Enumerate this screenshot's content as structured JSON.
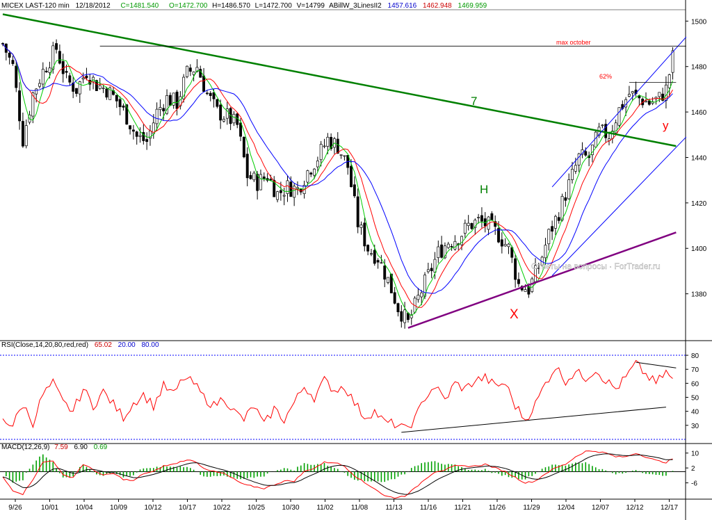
{
  "header": {
    "price": {
      "symbol": "MICEX LAST-120 min",
      "date": "12/18/2012",
      "close": "C=1481.540",
      "open": "O=1472.700",
      "high": "H=1486.570",
      "low": "L=1472.700",
      "volume": "V=14799",
      "indicator": "ABillW_3LinesII2",
      "v1": "1457.616",
      "v2": "1462.948",
      "v3": "1469.959"
    },
    "rsi": {
      "label": "RSI(Close,14,20,80,red,red)",
      "value": "65.02",
      "low": "20.00",
      "high": "80.00"
    },
    "macd": {
      "label": "MACD(12,26,9)",
      "v1": "7.59",
      "v2": "6.90",
      "v3": "0.69"
    }
  },
  "colors": {
    "background": "#ffffff",
    "blue": "#0000ff",
    "red": "#ff0000",
    "green": "#00cc00",
    "trendline": "#008000",
    "purple": "#800080",
    "hist": "#00a000",
    "header_blue": "#0000cc"
  },
  "annotations": {
    "h": "H",
    "x": "X",
    "y": "y",
    "seven": "7",
    "max_october": "max october",
    "fib": "62%",
    "watermark": "Ответы на вопросы · ForTrader.ru"
  },
  "chart_data": [
    {
      "type": "candlestick",
      "name": "MICEX LAST-120 min",
      "x_tick_labels": [
        "9/26",
        "10/01",
        "10/04",
        "10/09",
        "10/12",
        "10/17",
        "10/22",
        "10/25",
        "10/30",
        "11/02",
        "11/08",
        "11/13",
        "11/16",
        "11/21",
        "11/26",
        "11/29",
        "12/04",
        "12/07",
        "12/12",
        "12/17"
      ],
      "y_ticks": [
        1380,
        1400,
        1420,
        1440,
        1460,
        1480,
        1500
      ],
      "ylim": [
        1360,
        1505
      ],
      "anchors": [
        [
          0,
          1490
        ],
        [
          3,
          1480
        ],
        [
          6,
          1448
        ],
        [
          9,
          1468
        ],
        [
          12,
          1478
        ],
        [
          16,
          1488
        ],
        [
          19,
          1474
        ],
        [
          22,
          1470
        ],
        [
          25,
          1478
        ],
        [
          28,
          1472
        ],
        [
          31,
          1470
        ],
        [
          34,
          1465
        ],
        [
          37,
          1458
        ],
        [
          40,
          1449
        ],
        [
          43,
          1447
        ],
        [
          46,
          1460
        ],
        [
          49,
          1466
        ],
        [
          52,
          1464
        ],
        [
          55,
          1477
        ],
        [
          58,
          1480
        ],
        [
          61,
          1468
        ],
        [
          64,
          1460
        ],
        [
          67,
          1458
        ],
        [
          70,
          1454
        ],
        [
          73,
          1432
        ],
        [
          76,
          1429
        ],
        [
          79,
          1432
        ],
        [
          82,
          1424
        ],
        [
          85,
          1427
        ],
        [
          88,
          1426
        ],
        [
          91,
          1434
        ],
        [
          94,
          1440
        ],
        [
          97,
          1448
        ],
        [
          100,
          1445
        ],
        [
          103,
          1436
        ],
        [
          106,
          1411
        ],
        [
          109,
          1400
        ],
        [
          112,
          1396
        ],
        [
          115,
          1386
        ],
        [
          118,
          1374
        ],
        [
          121,
          1367
        ],
        [
          124,
          1378
        ],
        [
          127,
          1388
        ],
        [
          130,
          1398
        ],
        [
          133,
          1403
        ],
        [
          136,
          1405
        ],
        [
          139,
          1410
        ],
        [
          142,
          1412
        ],
        [
          145,
          1410
        ],
        [
          148,
          1406
        ],
        [
          151,
          1400
        ],
        [
          154,
          1384
        ],
        [
          157,
          1382
        ],
        [
          160,
          1392
        ],
        [
          163,
          1406
        ],
        [
          166,
          1416
        ],
        [
          169,
          1428
        ],
        [
          172,
          1440
        ],
        [
          175,
          1440
        ],
        [
          178,
          1451
        ],
        [
          181,
          1450
        ],
        [
          184,
          1461
        ],
        [
          187,
          1468
        ],
        [
          190,
          1466
        ],
        [
          193,
          1464
        ],
        [
          196,
          1466
        ],
        [
          198,
          1470
        ],
        [
          200,
          1484
        ]
      ],
      "moving_averages": [
        {
          "color": "green",
          "period": 5
        },
        {
          "color": "red",
          "period": 9
        },
        {
          "color": "blue",
          "period": 16
        }
      ],
      "trendlines": [
        {
          "name": "downtrend-7",
          "color": "green",
          "points": [
            [
              0,
              1503
            ],
            [
              201,
              1445
            ]
          ]
        },
        {
          "name": "support",
          "color": "purple",
          "points": [
            [
              121,
              1365
            ],
            [
              201,
              1407
            ]
          ]
        },
        {
          "name": "channel-upper",
          "color": "blue",
          "points": [
            [
              164,
              1427
            ],
            [
              204,
              1493
            ]
          ]
        },
        {
          "name": "channel-lower",
          "color": "blue",
          "points": [
            [
              164,
              1388
            ],
            [
              204,
              1449
            ]
          ]
        },
        {
          "name": "max-october",
          "color": "black",
          "points": [
            [
              29,
              1489
            ],
            [
              204,
              1489
            ]
          ]
        },
        {
          "name": "fib-62",
          "color": "black",
          "points": [
            [
              187,
              1473
            ],
            [
              201,
              1473
            ]
          ]
        }
      ]
    },
    {
      "type": "line",
      "name": "RSI(Close,14,20,80,red,red)",
      "y_ticks": [
        30,
        40,
        50,
        60,
        70,
        80
      ],
      "ylim": [
        18,
        84
      ],
      "levels": [
        20,
        80
      ],
      "anchors": [
        [
          0,
          35
        ],
        [
          3,
          30
        ],
        [
          6,
          45
        ],
        [
          9,
          32
        ],
        [
          12,
          52
        ],
        [
          15,
          60
        ],
        [
          18,
          46
        ],
        [
          21,
          40
        ],
        [
          24,
          56
        ],
        [
          27,
          44
        ],
        [
          30,
          54
        ],
        [
          33,
          45
        ],
        [
          36,
          36
        ],
        [
          39,
          46
        ],
        [
          42,
          52
        ],
        [
          45,
          44
        ],
        [
          48,
          58
        ],
        [
          51,
          52
        ],
        [
          54,
          64
        ],
        [
          57,
          60
        ],
        [
          60,
          50
        ],
        [
          63,
          44
        ],
        [
          66,
          50
        ],
        [
          69,
          40
        ],
        [
          72,
          34
        ],
        [
          75,
          44
        ],
        [
          78,
          30
        ],
        [
          81,
          42
        ],
        [
          84,
          34
        ],
        [
          87,
          46
        ],
        [
          90,
          58
        ],
        [
          93,
          50
        ],
        [
          96,
          62
        ],
        [
          99,
          55
        ],
        [
          102,
          58
        ],
        [
          105,
          46
        ],
        [
          108,
          36
        ],
        [
          111,
          40
        ],
        [
          114,
          32
        ],
        [
          117,
          31
        ],
        [
          120,
          27
        ],
        [
          123,
          34
        ],
        [
          126,
          50
        ],
        [
          129,
          58
        ],
        [
          132,
          48
        ],
        [
          135,
          60
        ],
        [
          138,
          56
        ],
        [
          141,
          62
        ],
        [
          144,
          64
        ],
        [
          147,
          58
        ],
        [
          150,
          60
        ],
        [
          153,
          44
        ],
        [
          156,
          34
        ],
        [
          159,
          45
        ],
        [
          162,
          60
        ],
        [
          165,
          72
        ],
        [
          168,
          62
        ],
        [
          171,
          68
        ],
        [
          174,
          64
        ],
        [
          177,
          70
        ],
        [
          180,
          62
        ],
        [
          183,
          56
        ],
        [
          186,
          64
        ],
        [
          189,
          74
        ],
        [
          192,
          66
        ],
        [
          195,
          60
        ],
        [
          198,
          68
        ],
        [
          200,
          62
        ]
      ],
      "trendlines": [
        {
          "color": "black",
          "points": [
            [
              119,
              25
            ],
            [
              198,
              43
            ]
          ]
        },
        {
          "color": "black",
          "points": [
            [
              189,
              75
            ],
            [
              201,
              71
            ]
          ]
        }
      ]
    },
    {
      "type": "line",
      "name": "MACD(12,26,9)",
      "y_ticks": [
        -6,
        2,
        10
      ],
      "ylim": [
        -14,
        14
      ],
      "zero_line": 0,
      "macd_anchors": [
        [
          0,
          -3
        ],
        [
          3,
          -10
        ],
        [
          6,
          -12
        ],
        [
          9,
          -4
        ],
        [
          12,
          5
        ],
        [
          15,
          6
        ],
        [
          18,
          -2
        ],
        [
          21,
          -3
        ],
        [
          24,
          4
        ],
        [
          27,
          1
        ],
        [
          30,
          -2
        ],
        [
          33,
          -1
        ],
        [
          36,
          -4
        ],
        [
          39,
          -5
        ],
        [
          42,
          -1
        ],
        [
          45,
          0
        ],
        [
          48,
          3
        ],
        [
          51,
          4
        ],
        [
          54,
          6
        ],
        [
          57,
          6
        ],
        [
          60,
          2
        ],
        [
          63,
          0
        ],
        [
          66,
          -1
        ],
        [
          69,
          -4
        ],
        [
          72,
          -7
        ],
        [
          75,
          -8
        ],
        [
          78,
          -9
        ],
        [
          81,
          -7
        ],
        [
          84,
          -5
        ],
        [
          87,
          -5
        ],
        [
          90,
          0
        ],
        [
          93,
          2
        ],
        [
          96,
          5
        ],
        [
          99,
          5
        ],
        [
          102,
          3
        ],
        [
          105,
          -2
        ],
        [
          108,
          -6
        ],
        [
          111,
          -9
        ],
        [
          114,
          -13
        ],
        [
          117,
          -14
        ],
        [
          120,
          -13
        ],
        [
          123,
          -9
        ],
        [
          126,
          -4
        ],
        [
          129,
          0
        ],
        [
          132,
          1
        ],
        [
          135,
          3
        ],
        [
          138,
          3
        ],
        [
          141,
          3
        ],
        [
          144,
          4
        ],
        [
          147,
          2
        ],
        [
          150,
          0
        ],
        [
          153,
          -3
        ],
        [
          156,
          -6
        ],
        [
          159,
          -5
        ],
        [
          162,
          -1
        ],
        [
          165,
          2
        ],
        [
          168,
          4
        ],
        [
          171,
          8
        ],
        [
          174,
          11
        ],
        [
          177,
          11
        ],
        [
          180,
          10
        ],
        [
          183,
          8
        ],
        [
          186,
          8
        ],
        [
          189,
          10
        ],
        [
          192,
          8
        ],
        [
          195,
          6
        ],
        [
          198,
          5
        ],
        [
          200,
          7
        ]
      ],
      "signal_period": 9
    }
  ]
}
